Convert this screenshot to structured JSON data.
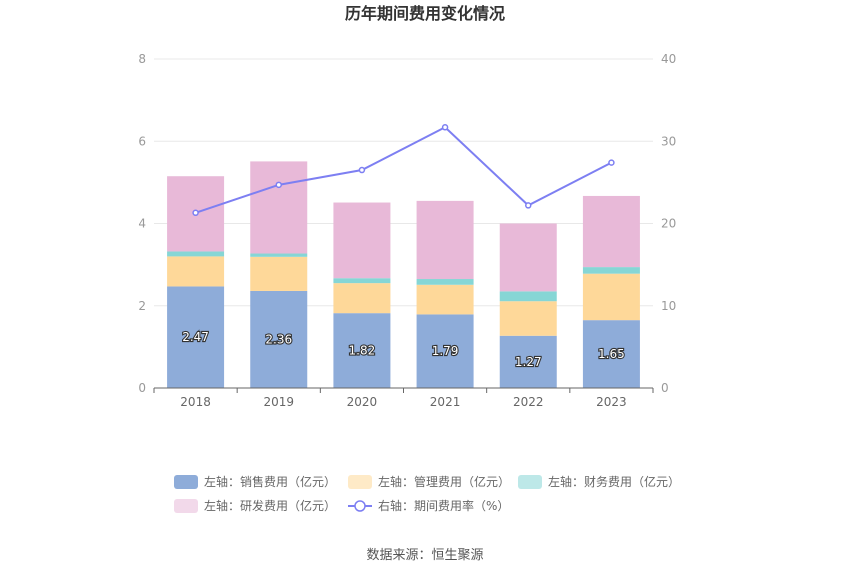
{
  "chart_data": {
    "type": "bar",
    "title": "历年期间费用变化情况",
    "categories": [
      "2018",
      "2019",
      "2020",
      "2021",
      "2022",
      "2023"
    ],
    "stacked": true,
    "y_left": {
      "min": 0,
      "max": 8,
      "ticks": [
        0,
        2,
        4,
        6,
        8
      ]
    },
    "y_right": {
      "min": 0,
      "max": 40,
      "ticks": [
        0,
        10,
        20,
        30,
        40
      ]
    },
    "series": [
      {
        "name": "左轴：销售费用（亿元）",
        "axis": "left",
        "kind": "bar",
        "color": "#8eacd9",
        "values": [
          2.47,
          2.36,
          1.82,
          1.79,
          1.27,
          1.65
        ],
        "show_labels": true
      },
      {
        "name": "左轴：管理费用（亿元）",
        "axis": "left",
        "kind": "bar",
        "color": "#fed899",
        "values": [
          0.73,
          0.83,
          0.73,
          0.72,
          0.84,
          1.13
        ]
      },
      {
        "name": "左轴：财务费用（亿元）",
        "axis": "left",
        "kind": "bar",
        "color": "#86d6d5",
        "values": [
          0.12,
          0.08,
          0.12,
          0.14,
          0.24,
          0.16
        ]
      },
      {
        "name": "左轴：研发费用（亿元）",
        "axis": "left",
        "kind": "bar",
        "color": "#e8b9d8",
        "values": [
          1.83,
          2.24,
          1.84,
          1.9,
          1.65,
          1.73
        ]
      },
      {
        "name": "右轴：期间费用率（%）",
        "axis": "right",
        "kind": "line",
        "color": "#7d7ff2",
        "values": [
          21.3,
          24.7,
          26.5,
          31.7,
          22.2,
          27.4
        ]
      }
    ],
    "legend_position": "bottom",
    "grid": true
  },
  "source": "数据来源：恒生聚源"
}
